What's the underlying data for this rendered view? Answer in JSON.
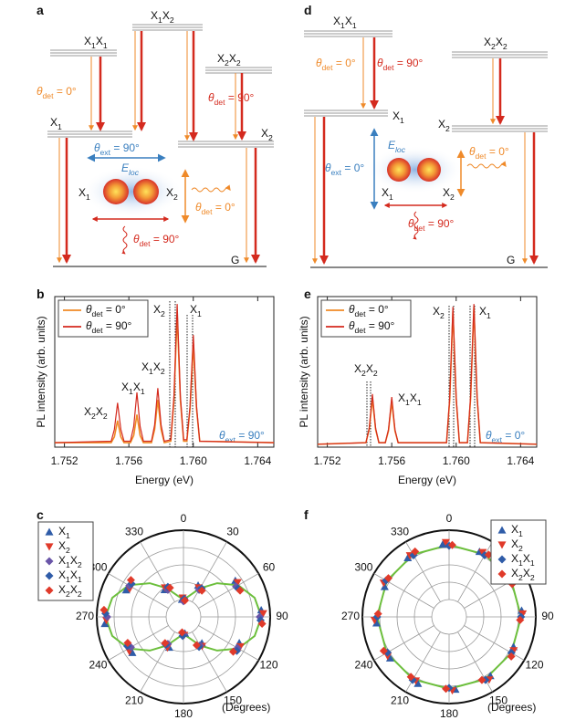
{
  "diagrams": [
    {
      "letter": "a",
      "labels": [
        "X1X2",
        "X1X1",
        "X2X2",
        "θdet = 0°",
        "θdet = 90°",
        "X1",
        "X2",
        "θext = 90°",
        "Eloc",
        "X1",
        "X2",
        "θdet = 0°",
        "θdet = 90°",
        "G"
      ]
    },
    {
      "letter": "d",
      "labels": [
        "X1X1",
        "X2X2",
        "θdet = 0°",
        "θdet = 90°",
        "X1",
        "X2",
        "Eloc",
        "θext = 0°",
        "X1",
        "X2",
        "θdet = 0°",
        "θdet = 90°",
        "G"
      ]
    }
  ],
  "chart_data": [
    {
      "letter": "b",
      "type": "line",
      "xlabel": "Energy (eV)",
      "ylabel": "PL intensity (arb. units)",
      "x": [
        1.7514,
        1.7549,
        1.7551,
        1.7553,
        1.7555,
        1.7557,
        1.7561,
        1.7563,
        1.7565,
        1.7567,
        1.7569,
        1.7574,
        1.7576,
        1.7578,
        1.758,
        1.7582,
        1.7586,
        1.7588,
        1.759,
        1.7592,
        1.7594,
        1.7596,
        1.7598,
        1.76,
        1.7602,
        1.7604,
        1.765
      ],
      "xlim": [
        1.7514,
        1.765
      ],
      "ylim": [
        0,
        1.02
      ],
      "xticks": [
        1.752,
        1.756,
        {
          "value": 1.76,
          "label": "1.760"
        },
        1.764
      ],
      "series": [
        {
          "name": "θdet = 0°",
          "color": "#f08a24",
          "values": [
            0.03,
            0.03,
            0.07,
            0.18,
            0.07,
            0.03,
            0.03,
            0.08,
            0.22,
            0.08,
            0.03,
            0.03,
            0.12,
            0.32,
            0.12,
            0.03,
            0.04,
            0.32,
            0.9,
            0.32,
            0.04,
            0.04,
            0.26,
            0.7,
            0.26,
            0.04,
            0.03
          ]
        },
        {
          "name": "θdet = 90°",
          "color": "#d42a1e",
          "values": [
            0.03,
            0.04,
            0.12,
            0.3,
            0.12,
            0.04,
            0.04,
            0.14,
            0.37,
            0.14,
            0.04,
            0.04,
            0.15,
            0.4,
            0.15,
            0.04,
            0.05,
            0.35,
            0.97,
            0.35,
            0.05,
            0.05,
            0.28,
            0.76,
            0.28,
            0.04,
            0.03
          ]
        }
      ],
      "annotations": [
        "X2X2",
        "X1X1",
        "X1X2",
        "X2",
        "X1",
        "θext = 90°"
      ]
    },
    {
      "letter": "e",
      "type": "line",
      "xlabel": "Energy (eV)",
      "ylabel": "PL intensity (arb. units)",
      "x": [
        1.7514,
        1.7544,
        1.7546,
        1.7548,
        1.755,
        1.7552,
        1.7556,
        1.7558,
        1.756,
        1.7562,
        1.7564,
        1.7594,
        1.7596,
        1.7598,
        1.76,
        1.7602,
        1.7607,
        1.7609,
        1.7611,
        1.7613,
        1.7615,
        1.765
      ],
      "xlim": [
        1.7514,
        1.765
      ],
      "ylim": [
        0,
        1.02
      ],
      "xticks": [
        1.752,
        1.756,
        {
          "value": 1.76,
          "label": "1.760"
        },
        1.764
      ],
      "series": [
        {
          "name": "θdet = 0°",
          "color": "#f08a24",
          "values": [
            0.02,
            0.03,
            0.12,
            0.33,
            0.12,
            0.03,
            0.03,
            0.11,
            0.31,
            0.11,
            0.03,
            0.03,
            0.32,
            0.92,
            0.32,
            0.03,
            0.03,
            0.33,
            0.95,
            0.33,
            0.03,
            0.02
          ]
        },
        {
          "name": "θdet = 90°",
          "color": "#d42a1e",
          "values": [
            0.02,
            0.03,
            0.13,
            0.36,
            0.13,
            0.03,
            0.03,
            0.12,
            0.34,
            0.12,
            0.03,
            0.03,
            0.34,
            0.95,
            0.34,
            0.03,
            0.03,
            0.35,
            0.97,
            0.35,
            0.03,
            0.02
          ]
        }
      ],
      "annotations": [
        "X2X2",
        "X1X1",
        "X2",
        "X1",
        "θext = 0°"
      ]
    },
    {
      "letter": "c",
      "type": "polar",
      "theta_label": "(Degrees)",
      "theta": [
        0,
        30,
        60,
        90,
        120,
        150,
        180,
        210,
        240,
        270,
        300,
        330
      ],
      "thetaticks": [
        0,
        30,
        60,
        90,
        120,
        150,
        180,
        210,
        240,
        270,
        300,
        330
      ],
      "rlim": [
        0,
        1
      ],
      "rticks": [
        0.2,
        0.4,
        0.6,
        0.8,
        1
      ],
      "series": [
        {
          "name": "X1",
          "color": "#2f5ca8",
          "marker": "triangle-up",
          "values": [
            0.2,
            0.4,
            0.73,
            0.9,
            0.71,
            0.37,
            0.19,
            0.39,
            0.72,
            0.91,
            0.73,
            0.38
          ]
        },
        {
          "name": "X2",
          "color": "#e03a2a",
          "marker": "triangle-down",
          "values": [
            0.22,
            0.38,
            0.74,
            0.92,
            0.74,
            0.4,
            0.21,
            0.4,
            0.74,
            0.89,
            0.7,
            0.4
          ]
        },
        {
          "name": "X1X2",
          "color": "#6a55a8",
          "marker": "diamond",
          "values": [
            0.18,
            0.36,
            0.7,
            0.88,
            0.72,
            0.38,
            0.2,
            0.36,
            0.7,
            0.88,
            0.72,
            0.36
          ]
        },
        {
          "name": "X1X1",
          "color": "#2f5ca8",
          "marker": "diamond",
          "values": [
            0.21,
            0.39,
            0.71,
            0.89,
            0.73,
            0.39,
            0.22,
            0.38,
            0.73,
            0.9,
            0.71,
            0.39
          ]
        },
        {
          "name": "X2X2",
          "color": "#e03a2a",
          "marker": "diamond",
          "values": [
            0.19,
            0.37,
            0.72,
            0.91,
            0.7,
            0.36,
            0.18,
            0.37,
            0.71,
            0.92,
            0.74,
            0.37
          ]
        }
      ],
      "fit": {
        "color": "#6cbf3c",
        "theta": [
          0,
          15,
          30,
          45,
          60,
          75,
          90,
          105,
          120,
          135,
          150,
          165,
          180,
          195,
          210,
          225,
          240,
          255,
          270,
          285,
          300,
          315,
          330,
          345,
          360
        ],
        "values": [
          0.2,
          0.25,
          0.38,
          0.55,
          0.73,
          0.85,
          0.9,
          0.85,
          0.73,
          0.55,
          0.38,
          0.25,
          0.2,
          0.25,
          0.38,
          0.55,
          0.73,
          0.85,
          0.9,
          0.85,
          0.73,
          0.55,
          0.38,
          0.25,
          0.2
        ]
      }
    },
    {
      "letter": "f",
      "type": "polar",
      "theta_label": "(Degrees)",
      "theta": [
        0,
        30,
        60,
        90,
        120,
        150,
        180,
        210,
        240,
        270,
        300,
        330
      ],
      "thetaticks": [
        0,
        30,
        60,
        90,
        120,
        150,
        180,
        210,
        240,
        270,
        300,
        330
      ],
      "rlim": [
        0,
        1
      ],
      "rticks": [
        0.2,
        0.4,
        0.6,
        0.8,
        1
      ],
      "series": [
        {
          "name": "X1",
          "color": "#2f5ca8",
          "marker": "triangle-up",
          "values": [
            0.84,
            0.83,
            0.85,
            0.84,
            0.82,
            0.83,
            0.84,
            0.85,
            0.83,
            0.84,
            0.82,
            0.83
          ]
        },
        {
          "name": "X2",
          "color": "#e03a2a",
          "marker": "triangle-down",
          "values": [
            0.86,
            0.84,
            0.83,
            0.85,
            0.84,
            0.86,
            0.85,
            0.83,
            0.84,
            0.86,
            0.85,
            0.84
          ]
        },
        {
          "name": "X1X1",
          "color": "#2f5ca8",
          "marker": "diamond",
          "values": [
            0.82,
            0.82,
            0.84,
            0.83,
            0.83,
            0.84,
            0.82,
            0.84,
            0.82,
            0.83,
            0.84,
            0.82
          ]
        },
        {
          "name": "X2X2",
          "color": "#e03a2a",
          "marker": "diamond",
          "values": [
            0.83,
            0.85,
            0.82,
            0.82,
            0.85,
            0.82,
            0.83,
            0.82,
            0.85,
            0.82,
            0.83,
            0.85
          ]
        }
      ],
      "fit": {
        "color": "#6cbf3c",
        "theta": [
          0,
          30,
          60,
          90,
          120,
          150,
          180,
          210,
          240,
          270,
          300,
          330,
          360
        ],
        "values": [
          0.83,
          0.83,
          0.83,
          0.83,
          0.83,
          0.83,
          0.83,
          0.83,
          0.83,
          0.83,
          0.83,
          0.83,
          0.83
        ]
      }
    }
  ]
}
